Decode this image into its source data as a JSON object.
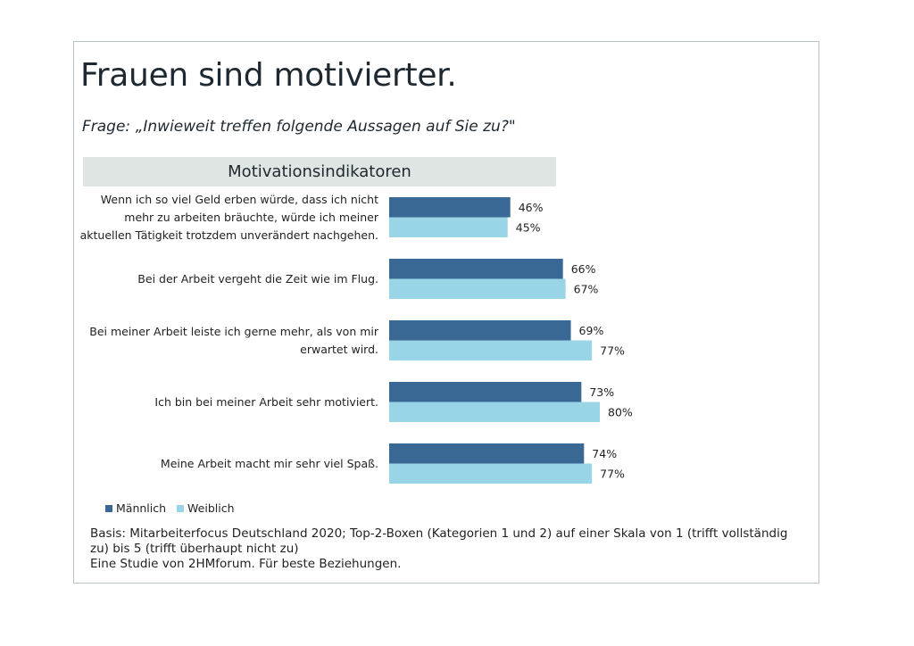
{
  "title": "Frauen sind motivierter.",
  "question": "Frage: „Inwieweit treffen folgende Aussagen auf Sie zu?\"",
  "section_header": "Motivationsindikatoren",
  "colors": {
    "maennlich": "#3a6894",
    "weiblich": "#99d5e6",
    "header_bg": "#dfe5e3",
    "frame": "#b9c6c9"
  },
  "legend": [
    {
      "label": "Männlich",
      "color": "#3a6894"
    },
    {
      "label": "Weiblich",
      "color": "#99d5e6"
    }
  ],
  "footnote": {
    "line1": "Basis: Mitarbeiterfocus Deutschland 2020; Top-2-Boxen (Kategorien 1 und 2) auf einer Skala von 1 (trifft vollständig zu) bis 5 (trifft überhaupt nicht zu)",
    "line2": "Eine Studie von 2HMforum. Für beste Beziehungen."
  },
  "chart_data": {
    "type": "bar",
    "orientation": "horizontal",
    "title": "Motivationsindikatoren",
    "xlabel": "",
    "ylabel": "",
    "xlim": [
      0,
      100
    ],
    "unit": "%",
    "grid": false,
    "legend_position": "bottom-left",
    "categories": [
      "Wenn ich so viel Geld erben würde, dass ich nicht mehr zu arbeiten bräuchte, würde ich meiner aktuellen Tätigkeit trotzdem unverändert nachgehen.",
      "Bei der Arbeit vergeht die Zeit wie im Flug.",
      "Bei meiner Arbeit leiste ich gerne mehr, als von mir erwartet wird.",
      "Ich bin bei meiner Arbeit sehr motiviert.",
      "Meine Arbeit macht mir sehr viel Spaß."
    ],
    "category_lines": [
      [
        "Wenn ich so viel Geld erben würde, dass ich nicht",
        "mehr zu arbeiten bräuchte, würde ich meiner",
        "aktuellen Tätigkeit trotzdem unverändert nachgehen."
      ],
      [
        "Bei der Arbeit vergeht die Zeit wie im Flug."
      ],
      [
        "Bei meiner Arbeit leiste ich gerne mehr, als von mir",
        "erwartet wird."
      ],
      [
        "Ich bin bei meiner Arbeit sehr motiviert."
      ],
      [
        "Meine Arbeit macht mir sehr viel Spaß."
      ]
    ],
    "series": [
      {
        "name": "Männlich",
        "color": "#3a6894",
        "values": [
          46,
          66,
          69,
          73,
          74
        ]
      },
      {
        "name": "Weiblich",
        "color": "#99d5e6",
        "values": [
          45,
          67,
          77,
          80,
          77
        ]
      }
    ]
  }
}
